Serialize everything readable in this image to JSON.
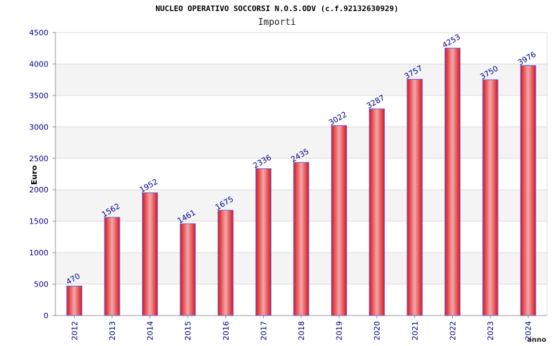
{
  "chart_data": {
    "type": "bar",
    "title": "NUCLEO OPERATIVO SOCCORSI N.O.S.ODV (c.f.92132630929)",
    "subtitle": "Importi",
    "xlabel": "anno",
    "ylabel": "Euro",
    "categories": [
      "2012",
      "2013",
      "2014",
      "2015",
      "2016",
      "2017",
      "2018",
      "2019",
      "2020",
      "2021",
      "2022",
      "2023",
      "2024"
    ],
    "series": [
      {
        "values": [
          470,
          1562,
          1952,
          1461,
          1675,
          2336,
          2435,
          3022,
          3287,
          3757,
          4253,
          3750,
          3976
        ]
      }
    ],
    "ylim": [
      0,
      4500
    ],
    "yticks": [
      0,
      500,
      1000,
      1500,
      2000,
      2500,
      3000,
      3500,
      4000,
      4500
    ],
    "grid": true,
    "legend": "none",
    "colors": {
      "bar": "#e8202a",
      "bar_highlight": "#f0a0a0",
      "bar_outline": "#6a6adf",
      "label": "#00008b",
      "band": "#f4f4f4"
    }
  }
}
